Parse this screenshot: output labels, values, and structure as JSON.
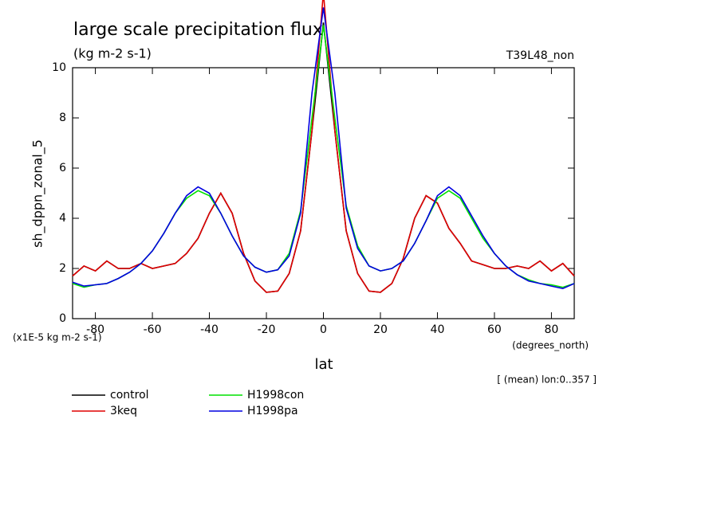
{
  "chart_data": {
    "type": "line",
    "title": "large scale precipitation flux",
    "subtitle": "(kg m-2 s-1)",
    "run_label": "T39L48_non",
    "ylabel": "sh_dppn_zonal_5",
    "yunit": "(x1E-5 kg m-2 s-1)",
    "xlabel": "lat",
    "xunit": "(degrees_north)",
    "annotation": "[ (mean) lon:0..357 ]",
    "x": [
      -88,
      -84,
      -80,
      -76,
      -72,
      -68,
      -64,
      -60,
      -56,
      -52,
      -48,
      -44,
      -40,
      -36,
      -32,
      -28,
      -24,
      -20,
      -16,
      -12,
      -8,
      -4,
      0,
      4,
      8,
      12,
      16,
      20,
      24,
      28,
      32,
      36,
      40,
      44,
      48,
      52,
      56,
      60,
      64,
      68,
      72,
      76,
      80,
      84,
      88
    ],
    "series": [
      {
        "name": "control",
        "color": "#000000",
        "values": [
          1.7,
          2.1,
          1.9,
          2.3,
          2.0,
          2.0,
          2.2,
          2.0,
          2.1,
          2.2,
          2.6,
          3.2,
          4.2,
          5.0,
          4.2,
          2.6,
          1.5,
          1.05,
          1.1,
          1.8,
          3.5,
          7.5,
          11.8,
          7.5,
          3.5,
          1.8,
          1.1,
          1.05,
          1.4,
          2.4,
          4.0,
          4.9,
          4.6,
          3.6,
          3.0,
          2.3,
          2.15,
          2.0,
          2.0,
          2.1,
          2.0,
          2.3,
          1.9,
          2.2,
          1.7
        ]
      },
      {
        "name": "3keq",
        "color": "#e00000",
        "values": [
          1.7,
          2.1,
          1.9,
          2.3,
          2.0,
          2.0,
          2.2,
          2.0,
          2.1,
          2.2,
          2.6,
          3.2,
          4.2,
          5.0,
          4.2,
          2.6,
          1.5,
          1.05,
          1.1,
          1.8,
          3.5,
          7.5,
          13,
          7.5,
          3.5,
          1.8,
          1.1,
          1.05,
          1.4,
          2.4,
          4.0,
          4.9,
          4.6,
          3.6,
          3.0,
          2.3,
          2.15,
          2.0,
          2.0,
          2.1,
          2.0,
          2.3,
          1.9,
          2.2,
          1.7
        ]
      },
      {
        "name": "H1998con",
        "color": "#00e000",
        "values": [
          1.4,
          1.25,
          1.35,
          1.4,
          1.6,
          1.85,
          2.2,
          2.7,
          3.4,
          4.2,
          4.8,
          5.1,
          4.9,
          4.2,
          3.3,
          2.5,
          2.05,
          1.85,
          1.95,
          2.6,
          4.3,
          8.0,
          11.7,
          8.0,
          4.5,
          2.9,
          2.1,
          1.9,
          2.0,
          2.3,
          3.0,
          3.9,
          4.8,
          5.1,
          4.8,
          4.0,
          3.2,
          2.6,
          2.1,
          1.75,
          1.55,
          1.4,
          1.35,
          1.25,
          1.4
        ]
      },
      {
        "name": "H1998pa",
        "color": "#0000e0",
        "values": [
          1.45,
          1.3,
          1.35,
          1.4,
          1.6,
          1.85,
          2.2,
          2.7,
          3.4,
          4.2,
          4.9,
          5.25,
          5.0,
          4.2,
          3.3,
          2.5,
          2.05,
          1.85,
          1.95,
          2.5,
          4.2,
          9.0,
          12.4,
          9.0,
          4.4,
          2.8,
          2.1,
          1.9,
          2.0,
          2.3,
          3.0,
          3.9,
          4.9,
          5.25,
          4.9,
          4.1,
          3.3,
          2.6,
          2.1,
          1.75,
          1.5,
          1.4,
          1.3,
          1.2,
          1.4
        ]
      }
    ],
    "xlim": [
      -88,
      88
    ],
    "ylim": [
      0,
      10
    ],
    "xticks": [
      -80,
      -60,
      -40,
      -20,
      0,
      20,
      40,
      60,
      80
    ],
    "yticks": [
      0,
      2,
      4,
      6,
      8,
      10
    ]
  }
}
